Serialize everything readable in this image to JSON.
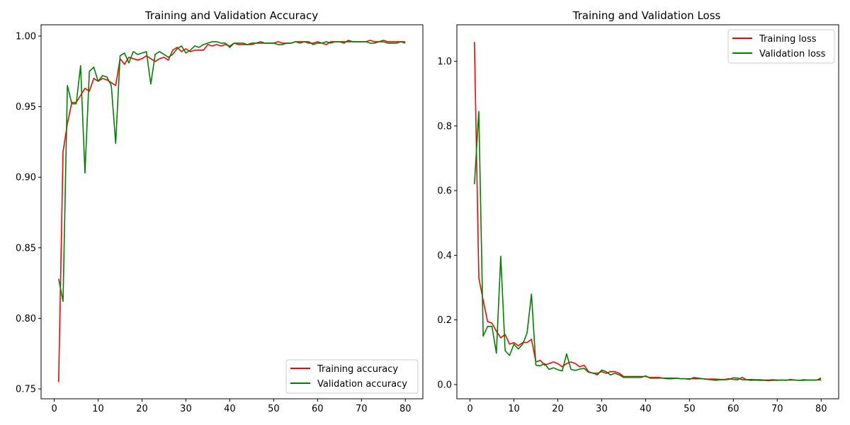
{
  "chart_data": [
    {
      "type": "line",
      "title": "Training and Validation Accuracy",
      "xlabel": "",
      "ylabel": "",
      "xlim": [
        -3,
        84
      ],
      "ylim": [
        0.743,
        1.008
      ],
      "xticks": [
        0,
        10,
        20,
        30,
        40,
        50,
        60,
        70,
        80
      ],
      "yticks": [
        0.75,
        0.8,
        0.85,
        0.9,
        0.95,
        1.0
      ],
      "ytick_labels": [
        "0.75",
        "0.80",
        "0.85",
        "0.90",
        "0.95",
        "1.00"
      ],
      "legend_position": "lower-right",
      "grid": false,
      "series": [
        {
          "name": "Training accuracy",
          "color": "#ff0000",
          "x": [
            1,
            2,
            3,
            4,
            5,
            6,
            7,
            8,
            9,
            10,
            11,
            12,
            13,
            14,
            15,
            16,
            17,
            18,
            19,
            20,
            21,
            22,
            23,
            24,
            25,
            26,
            27,
            28,
            29,
            30,
            31,
            32,
            33,
            34,
            35,
            36,
            37,
            38,
            39,
            40,
            41,
            42,
            43,
            44,
            45,
            46,
            47,
            48,
            49,
            50,
            51,
            52,
            53,
            54,
            55,
            56,
            57,
            58,
            59,
            60,
            61,
            62,
            63,
            64,
            65,
            66,
            67,
            68,
            69,
            70,
            71,
            72,
            73,
            74,
            75,
            76,
            77,
            78,
            79,
            80
          ],
          "values": [
            0.755,
            0.918,
            0.938,
            0.953,
            0.953,
            0.958,
            0.963,
            0.961,
            0.97,
            0.968,
            0.97,
            0.969,
            0.967,
            0.965,
            0.984,
            0.98,
            0.985,
            0.984,
            0.983,
            0.984,
            0.986,
            0.984,
            0.982,
            0.984,
            0.985,
            0.983,
            0.99,
            0.992,
            0.989,
            0.991,
            0.989,
            0.99,
            0.99,
            0.99,
            0.994,
            0.993,
            0.994,
            0.993,
            0.994,
            0.993,
            0.995,
            0.994,
            0.994,
            0.994,
            0.994,
            0.995,
            0.995,
            0.995,
            0.995,
            0.995,
            0.996,
            0.995,
            0.995,
            0.995,
            0.996,
            0.996,
            0.996,
            0.995,
            0.995,
            0.996,
            0.995,
            0.994,
            0.996,
            0.996,
            0.996,
            0.996,
            0.996,
            0.996,
            0.996,
            0.996,
            0.996,
            0.997,
            0.996,
            0.996,
            0.997,
            0.996,
            0.996,
            0.996,
            0.996,
            0.996
          ]
        },
        {
          "name": "Validation accuracy",
          "color": "#008000",
          "x": [
            1,
            2,
            3,
            4,
            5,
            6,
            7,
            8,
            9,
            10,
            11,
            12,
            13,
            14,
            15,
            16,
            17,
            18,
            19,
            20,
            21,
            22,
            23,
            24,
            25,
            26,
            27,
            28,
            29,
            30,
            31,
            32,
            33,
            34,
            35,
            36,
            37,
            38,
            39,
            40,
            41,
            42,
            43,
            44,
            45,
            46,
            47,
            48,
            49,
            50,
            51,
            52,
            53,
            54,
            55,
            56,
            57,
            58,
            59,
            60,
            61,
            62,
            63,
            64,
            65,
            66,
            67,
            68,
            69,
            70,
            71,
            72,
            73,
            74,
            75,
            76,
            77,
            78,
            79,
            80
          ],
          "values": [
            0.828,
            0.812,
            0.965,
            0.952,
            0.952,
            0.979,
            0.903,
            0.975,
            0.978,
            0.968,
            0.972,
            0.971,
            0.965,
            0.924,
            0.986,
            0.988,
            0.981,
            0.989,
            0.987,
            0.988,
            0.989,
            0.966,
            0.987,
            0.989,
            0.987,
            0.985,
            0.987,
            0.991,
            0.993,
            0.988,
            0.99,
            0.993,
            0.992,
            0.994,
            0.995,
            0.996,
            0.996,
            0.995,
            0.995,
            0.992,
            0.995,
            0.995,
            0.995,
            0.994,
            0.995,
            0.995,
            0.996,
            0.995,
            0.995,
            0.995,
            0.994,
            0.994,
            0.995,
            0.995,
            0.996,
            0.995,
            0.996,
            0.996,
            0.994,
            0.995,
            0.995,
            0.996,
            0.995,
            0.996,
            0.996,
            0.995,
            0.997,
            0.996,
            0.996,
            0.996,
            0.996,
            0.995,
            0.995,
            0.996,
            0.996,
            0.995,
            0.995,
            0.995,
            0.996,
            0.995
          ]
        }
      ]
    },
    {
      "type": "line",
      "title": "Training and Validation Loss",
      "xlabel": "",
      "ylabel": "",
      "xlim": [
        -3,
        84
      ],
      "ylim": [
        -0.044,
        1.113
      ],
      "xticks": [
        0,
        10,
        20,
        30,
        40,
        50,
        60,
        70,
        80
      ],
      "yticks": [
        0.0,
        0.2,
        0.4,
        0.6,
        0.8,
        1.0
      ],
      "ytick_labels": [
        "0.0",
        "0.2",
        "0.4",
        "0.6",
        "0.8",
        "1.0"
      ],
      "legend_position": "upper-right",
      "grid": false,
      "series": [
        {
          "name": "Training loss",
          "color": "#ff0000",
          "x": [
            1,
            2,
            3,
            4,
            5,
            6,
            7,
            8,
            9,
            10,
            11,
            12,
            13,
            14,
            15,
            16,
            17,
            18,
            19,
            20,
            21,
            22,
            23,
            24,
            25,
            26,
            27,
            28,
            29,
            30,
            31,
            32,
            33,
            34,
            35,
            36,
            37,
            38,
            39,
            40,
            41,
            42,
            43,
            44,
            45,
            46,
            47,
            48,
            49,
            50,
            51,
            52,
            53,
            54,
            55,
            56,
            57,
            58,
            59,
            60,
            61,
            62,
            63,
            64,
            65,
            66,
            67,
            68,
            69,
            70,
            71,
            72,
            73,
            74,
            75,
            76,
            77,
            78,
            79,
            80
          ],
          "values": [
            1.06,
            0.33,
            0.26,
            0.195,
            0.19,
            0.165,
            0.145,
            0.155,
            0.125,
            0.13,
            0.12,
            0.13,
            0.13,
            0.14,
            0.07,
            0.075,
            0.06,
            0.065,
            0.07,
            0.065,
            0.055,
            0.065,
            0.07,
            0.065,
            0.055,
            0.06,
            0.04,
            0.035,
            0.035,
            0.04,
            0.035,
            0.04,
            0.04,
            0.035,
            0.025,
            0.025,
            0.025,
            0.025,
            0.025,
            0.025,
            0.022,
            0.022,
            0.022,
            0.02,
            0.02,
            0.02,
            0.02,
            0.018,
            0.018,
            0.018,
            0.018,
            0.018,
            0.018,
            0.017,
            0.017,
            0.017,
            0.016,
            0.016,
            0.018,
            0.016,
            0.015,
            0.022,
            0.015,
            0.016,
            0.015,
            0.015,
            0.014,
            0.014,
            0.015,
            0.014,
            0.014,
            0.014,
            0.014,
            0.014,
            0.013,
            0.013,
            0.014,
            0.014,
            0.014,
            0.015
          ]
        },
        {
          "name": "Validation loss",
          "color": "#008000",
          "x": [
            1,
            2,
            3,
            4,
            5,
            6,
            7,
            8,
            9,
            10,
            11,
            12,
            13,
            14,
            15,
            16,
            17,
            18,
            19,
            20,
            21,
            22,
            23,
            24,
            25,
            26,
            27,
            28,
            29,
            30,
            31,
            32,
            33,
            34,
            35,
            36,
            37,
            38,
            39,
            40,
            41,
            42,
            43,
            44,
            45,
            46,
            47,
            48,
            49,
            50,
            51,
            52,
            53,
            54,
            55,
            56,
            57,
            58,
            59,
            60,
            61,
            62,
            63,
            64,
            65,
            66,
            67,
            68,
            69,
            70,
            71,
            72,
            73,
            74,
            75,
            76,
            77,
            78,
            79,
            80
          ],
          "values": [
            0.62,
            0.845,
            0.15,
            0.18,
            0.18,
            0.097,
            0.397,
            0.105,
            0.09,
            0.125,
            0.11,
            0.125,
            0.16,
            0.28,
            0.06,
            0.058,
            0.065,
            0.047,
            0.052,
            0.046,
            0.042,
            0.095,
            0.047,
            0.044,
            0.048,
            0.05,
            0.038,
            0.036,
            0.03,
            0.045,
            0.04,
            0.03,
            0.035,
            0.03,
            0.022,
            0.022,
            0.022,
            0.022,
            0.022,
            0.027,
            0.02,
            0.02,
            0.02,
            0.02,
            0.018,
            0.018,
            0.02,
            0.018,
            0.018,
            0.016,
            0.022,
            0.02,
            0.018,
            0.016,
            0.015,
            0.013,
            0.015,
            0.015,
            0.016,
            0.021,
            0.02,
            0.015,
            0.015,
            0.013,
            0.014,
            0.013,
            0.013,
            0.012,
            0.013,
            0.013,
            0.014,
            0.013,
            0.016,
            0.014,
            0.013,
            0.015,
            0.014,
            0.014,
            0.014,
            0.02
          ]
        }
      ]
    }
  ]
}
